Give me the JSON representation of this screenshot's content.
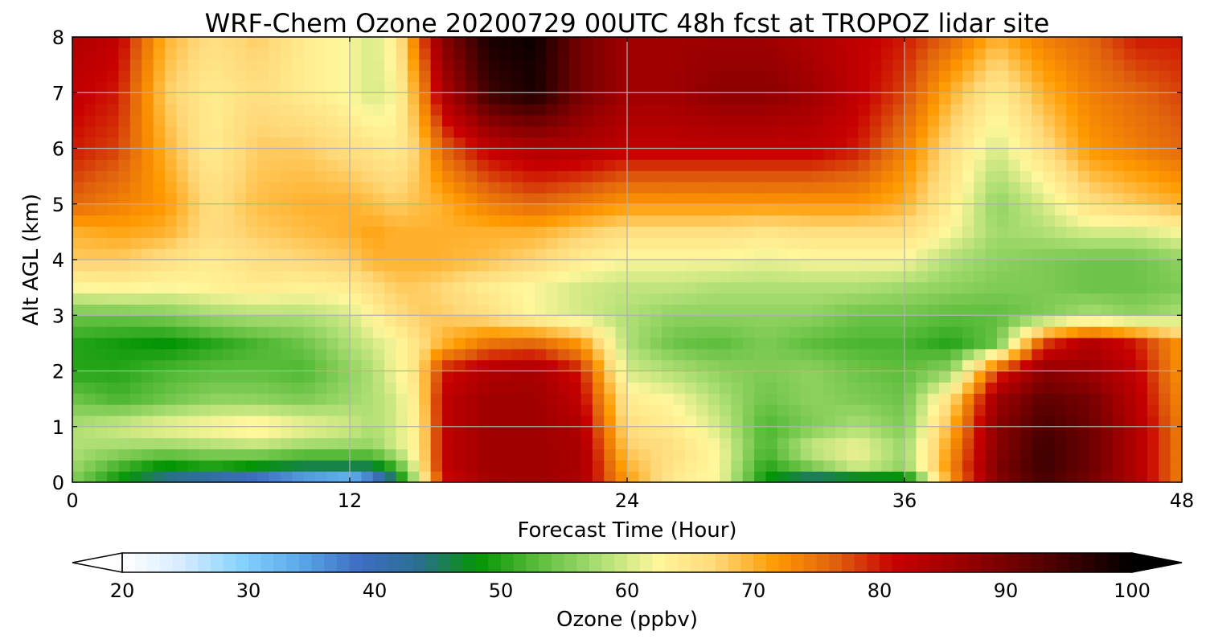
{
  "chart_data": {
    "type": "heatmap",
    "title": "WRF-Chem Ozone 20200729 00UTC 48h fcst at TROPOZ lidar site",
    "xlabel": "Forecast Time (Hour)",
    "ylabel": "Alt AGL (km)",
    "xlim": [
      0,
      48
    ],
    "ylim": [
      0,
      8
    ],
    "xticks": [
      "0",
      "12",
      "24",
      "36",
      "48"
    ],
    "yticks": [
      "0",
      "1",
      "2",
      "3",
      "4",
      "5",
      "6",
      "7",
      "8"
    ],
    "grid": true,
    "colorbar": {
      "label": "Ozone  (ppbv)",
      "range": [
        20,
        100
      ],
      "ticks": [
        "20",
        "30",
        "40",
        "50",
        "60",
        "70",
        "80",
        "90",
        "100"
      ],
      "extend": "both",
      "colors": [
        "#ffffff",
        "#d6ecff",
        "#86d2ff",
        "#5aa8e8",
        "#3e6dc4",
        "#2b6f8f",
        "#049504",
        "#5cbd3c",
        "#a9dd72",
        "#fff79b",
        "#ffd878",
        "#ff9a00",
        "#e0620d",
        "#c80000",
        "#a00000",
        "#700000",
        "#3a0000",
        "#000000"
      ]
    },
    "x": [
      0,
      2,
      4,
      6,
      8,
      10,
      12,
      13,
      14,
      15,
      16,
      18,
      20,
      22,
      24,
      26,
      28,
      30,
      32,
      34,
      36,
      38,
      40,
      42,
      44,
      46,
      48
    ],
    "y": [
      0,
      0.3,
      0.6,
      1,
      1.5,
      2,
      2.5,
      3,
      3.5,
      4,
      4.5,
      5,
      6,
      7,
      8
    ],
    "z": [
      [
        55,
        48,
        42,
        38,
        34,
        30,
        27,
        34,
        44,
        60,
        80,
        85,
        86,
        84,
        72,
        64,
        62,
        48,
        40,
        41,
        44,
        72,
        88,
        94,
        90,
        84,
        74
      ],
      [
        57,
        52,
        48,
        50,
        48,
        46,
        46,
        46,
        52,
        63,
        82,
        86,
        86,
        85,
        70,
        65,
        62,
        50,
        55,
        60,
        56,
        73,
        89,
        95,
        91,
        84,
        74
      ],
      [
        58,
        57,
        56,
        57,
        58,
        56,
        56,
        56,
        60,
        64,
        82,
        86,
        86,
        85,
        68,
        66,
        62,
        52,
        60,
        62,
        57,
        72,
        88,
        95,
        91,
        84,
        74
      ],
      [
        58,
        60,
        62,
        63,
        64,
        62,
        60,
        58,
        60,
        64,
        82,
        86,
        86,
        84,
        66,
        64,
        60,
        52,
        55,
        58,
        55,
        70,
        88,
        94,
        91,
        84,
        74
      ],
      [
        54,
        52,
        54,
        56,
        56,
        55,
        57,
        58,
        60,
        65,
        82,
        86,
        86,
        82,
        64,
        62,
        58,
        54,
        56,
        55,
        54,
        66,
        86,
        92,
        90,
        83,
        73
      ],
      [
        50,
        50,
        52,
        53,
        53,
        52,
        56,
        58,
        62,
        66,
        80,
        84,
        85,
        80,
        60,
        58,
        56,
        55,
        56,
        54,
        53,
        56,
        78,
        88,
        86,
        82,
        72
      ],
      [
        50,
        49,
        48,
        50,
        52,
        54,
        58,
        60,
        62,
        66,
        70,
        75,
        76,
        72,
        58,
        54,
        53,
        55,
        53,
        52,
        52,
        50,
        54,
        78,
        84,
        80,
        72
      ],
      [
        54,
        54,
        55,
        57,
        58,
        58,
        60,
        63,
        66,
        68,
        68,
        66,
        62,
        60,
        58,
        56,
        56,
        56,
        56,
        54,
        54,
        53,
        53,
        55,
        58,
        56,
        58
      ],
      [
        62,
        63,
        62,
        63,
        64,
        63,
        64,
        66,
        68,
        68,
        67,
        64,
        62,
        60,
        59,
        59,
        58,
        58,
        58,
        58,
        57,
        56,
        55,
        55,
        54,
        54,
        55
      ],
      [
        68,
        68,
        66,
        64,
        66,
        67,
        68,
        70,
        70,
        70,
        70,
        69,
        67,
        64,
        62,
        62,
        62,
        61,
        62,
        62,
        62,
        58,
        56,
        55,
        54,
        54,
        56
      ],
      [
        70,
        71,
        70,
        66,
        68,
        69,
        70,
        71,
        70,
        70,
        70,
        70,
        70,
        68,
        66,
        66,
        66,
        65,
        66,
        66,
        66,
        62,
        57,
        58,
        60,
        60,
        62
      ],
      [
        76,
        74,
        72,
        66,
        69,
        70,
        70,
        69,
        68,
        69,
        70,
        74,
        76,
        74,
        72,
        72,
        72,
        72,
        72,
        72,
        70,
        64,
        56,
        60,
        66,
        68,
        70
      ],
      [
        80,
        78,
        70,
        64,
        68,
        68,
        66,
        65,
        64,
        68,
        76,
        82,
        84,
        84,
        82,
        82,
        82,
        82,
        82,
        80,
        74,
        66,
        60,
        66,
        72,
        74,
        76
      ],
      [
        82,
        80,
        68,
        64,
        66,
        64,
        62,
        60,
        62,
        72,
        84,
        95,
        98,
        90,
        86,
        86,
        88,
        88,
        86,
        82,
        78,
        70,
        64,
        70,
        74,
        76,
        78
      ],
      [
        84,
        82,
        70,
        66,
        68,
        64,
        62,
        60,
        64,
        76,
        88,
        98,
        99,
        90,
        86,
        86,
        86,
        86,
        84,
        82,
        80,
        76,
        70,
        74,
        76,
        80,
        80
      ]
    ]
  }
}
